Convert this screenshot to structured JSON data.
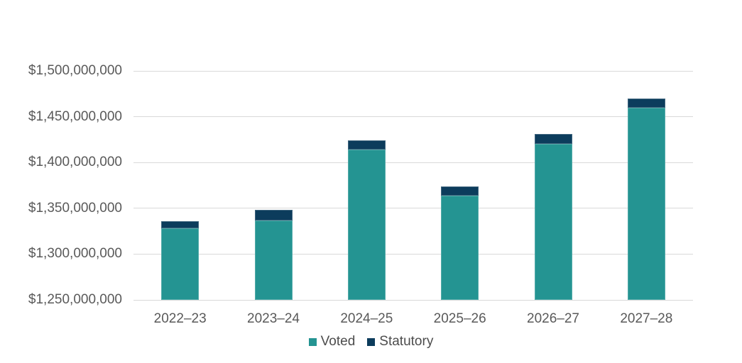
{
  "chart_data": {
    "type": "bar",
    "stacked": true,
    "title": "",
    "xlabel": "",
    "ylabel": "",
    "categories": [
      "2022–23",
      "2023–24",
      "2024–25",
      "2025–26",
      "2026–27",
      "2027–28"
    ],
    "series": [
      {
        "name": "Voted",
        "color": "#249492",
        "values": [
          1328000000,
          1337000000,
          1414000000,
          1364000000,
          1420000000,
          1460000000
        ]
      },
      {
        "name": "Statutory",
        "color": "#0c3c5c",
        "values": [
          8000000,
          11000000,
          10000000,
          10000000,
          11000000,
          10000000
        ]
      }
    ],
    "ylim": [
      1250000000,
      1500000000
    ],
    "ytick_step": 50000000,
    "ytick_labels": [
      "$1,250,000,000",
      "$1,300,000,000",
      "$1,350,000,000",
      "$1,400,000,000",
      "$1,450,000,000",
      "$1,500,000,000"
    ],
    "grid": true,
    "legend_position": "bottom"
  },
  "colors": {
    "background": "#ffffff",
    "gridline": "#d9d9d9",
    "axis_text": "#595959",
    "legend_text": "#4c4c4c"
  }
}
